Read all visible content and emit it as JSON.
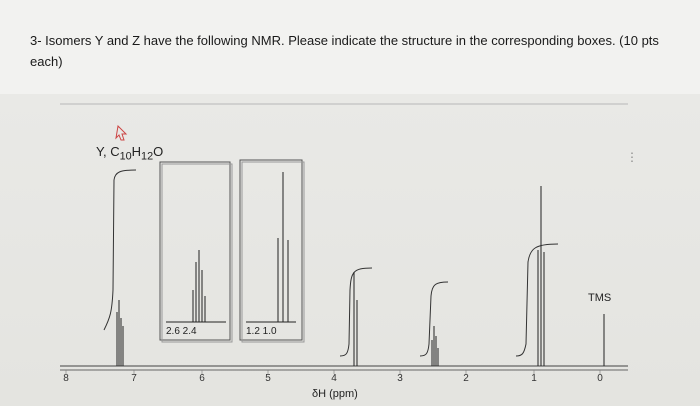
{
  "question": "3- Isomers Y and Z have the following NMR. Please indicate the structure in the corresponding boxes. (10 pts each)",
  "compound_label": "Y, C",
  "formula": {
    "c_sub": "10",
    "h": "H",
    "h_sub": "12",
    "o": "O"
  },
  "x_axis_label": "δH (ppm)",
  "tms_label": "TMS",
  "insets": [
    {
      "labels": "2.6  2.4"
    },
    {
      "labels": "1.2  1.0"
    }
  ],
  "x_ticks": [
    "8",
    "7",
    "6",
    "5",
    "4",
    "3",
    "2",
    "1",
    "0"
  ],
  "more_menu": "⋮"
}
